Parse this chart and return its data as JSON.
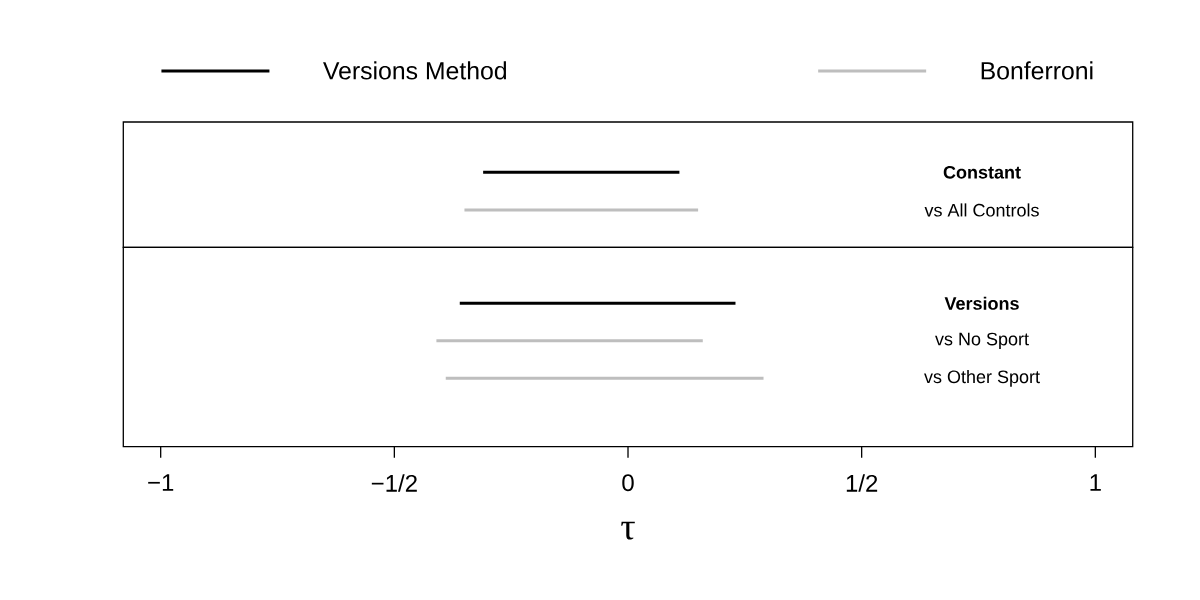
{
  "chart_data": [
    {
      "type": "bar",
      "orientation": "horizontal",
      "categories": [
        "Constant",
        "vs All Controls"
      ],
      "series": [
        {
          "name": "Versions Method",
          "color": "#000000",
          "base": [
            -0.31,
            null
          ],
          "values": [
            0.42,
            null
          ]
        },
        {
          "name": "Bonferroni",
          "color": "#bebebe",
          "base": [
            null,
            -0.35
          ],
          "values": [
            null,
            0.5
          ]
        }
      ],
      "xlim": [
        -1.08,
        1.08
      ],
      "tick_labels": "y",
      "legend": "top"
    },
    {
      "type": "bar",
      "orientation": "horizontal",
      "categories": [
        "Versions",
        "vs No Sport",
        "vs Other Sport"
      ],
      "series": [
        {
          "color": "#000000",
          "base": [
            -0.36,
            null,
            null
          ],
          "values": [
            0.59,
            null,
            null
          ]
        },
        {
          "color": "#bebebe",
          "base": [
            null,
            -0.41,
            -0.39
          ],
          "values": [
            null,
            0.57,
            0.68
          ]
        }
      ],
      "xlim": [
        -1.08,
        1.08
      ],
      "xticks": [
        {
          "value": -1,
          "label": "−1"
        },
        {
          "value": -0.5,
          "label": "−1/2"
        },
        0,
        {
          "value": 0.5,
          "label": "1/2"
        },
        1
      ],
      "xlabel": "τ"
    }
  ]
}
